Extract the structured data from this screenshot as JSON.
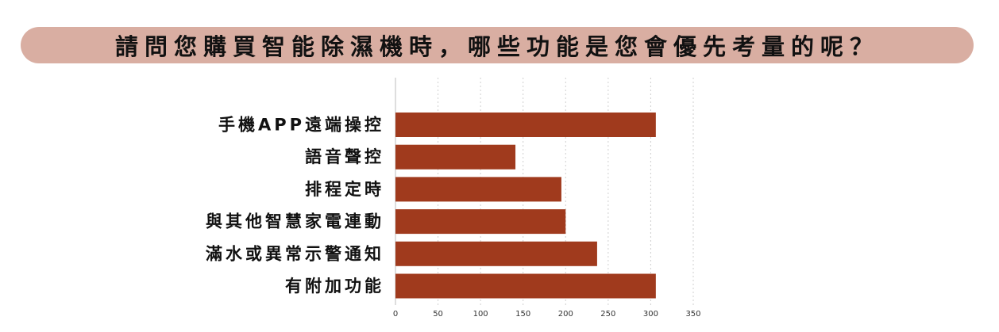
{
  "title": "請問您購買智能除濕機時，哪些功能是您會優先考量的呢？",
  "colors": {
    "title_background": "#d9aea2",
    "bar": "#a03a1d",
    "text": "#111111",
    "grid": "#cfcfcf"
  },
  "chart_data": {
    "type": "bar",
    "orientation": "horizontal",
    "title": "請問您購買智能除濕機時，哪些功能是您會優先考量的呢？",
    "xlabel": "",
    "ylabel": "",
    "categories": [
      "手機APP遠端操控",
      "語音聲控",
      "排程定時",
      "與其他智慧家電連動",
      "滿水或異常示警通知",
      "有附加功能"
    ],
    "values": [
      306,
      141,
      195,
      200,
      237,
      306
    ],
    "xlim": [
      0,
      350
    ],
    "ticks": [
      "0",
      "50",
      "100",
      "150",
      "200",
      "250",
      "300",
      "350"
    ],
    "grid": "vertical dotted",
    "legend": "none"
  }
}
